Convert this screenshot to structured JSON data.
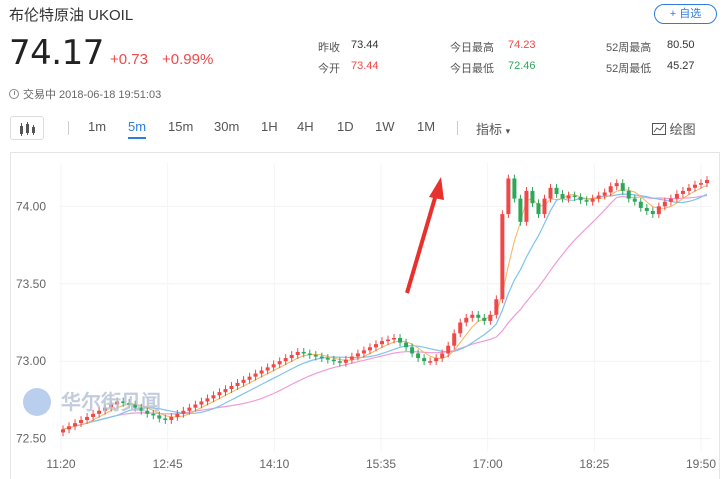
{
  "header": {
    "title": "布伦特原油 UKOIL",
    "add_button": "+ 自选"
  },
  "quote": {
    "price": "74.17",
    "change": "+0.73",
    "change_pct": "+0.99%"
  },
  "stats": {
    "prev_close_label": "昨收",
    "prev_close": "73.44",
    "open_label": "今开",
    "open": "73.44",
    "high_label": "今日最高",
    "high": "74.23",
    "low_label": "今日最低",
    "low": "72.46",
    "w52_high_label": "52周最高",
    "w52_high": "80.50",
    "w52_low_label": "52周最低",
    "w52_low": "45.27"
  },
  "status": {
    "text": "交易中 2018-06-18 19:51:03"
  },
  "toolbar": {
    "intervals": [
      "1m",
      "5m",
      "15m",
      "30m",
      "1H",
      "4H",
      "1D",
      "1W",
      "1M"
    ],
    "active_interval": "5m",
    "indicator_label": "指标",
    "draw_label": "绘图"
  },
  "colors": {
    "up": "#f04848",
    "down": "#2ca85a",
    "accent": "#2d7de0",
    "ma_fast": "#f5b25e",
    "ma_mid": "#7dc3ef",
    "ma_slow": "#f29ad8",
    "annotation_arrow": "#e8302c"
  },
  "watermark": "华尔街见闻",
  "chart_data": {
    "type": "candlestick",
    "y_ticks": [
      "74.00",
      "73.50",
      "73.00",
      "72.50"
    ],
    "x_ticks": [
      "11:20",
      "12:45",
      "14:10",
      "15:35",
      "17:00",
      "18:25",
      "19:50"
    ],
    "ylim": [
      72.42,
      74.28
    ],
    "close_series": [
      72.56,
      72.58,
      72.6,
      72.62,
      72.64,
      72.66,
      72.68,
      72.7,
      72.72,
      72.74,
      72.73,
      72.72,
      72.7,
      72.68,
      72.66,
      72.65,
      72.63,
      72.62,
      72.64,
      72.66,
      72.68,
      72.7,
      72.72,
      72.74,
      72.76,
      72.78,
      72.8,
      72.82,
      72.84,
      72.86,
      72.88,
      72.9,
      72.92,
      72.94,
      72.96,
      72.98,
      73.0,
      73.02,
      73.04,
      73.06,
      73.05,
      73.04,
      73.03,
      73.02,
      73.01,
      73.0,
      72.99,
      73.01,
      73.03,
      73.05,
      73.07,
      73.09,
      73.11,
      73.13,
      73.14,
      73.15,
      73.12,
      73.09,
      73.05,
      73.02,
      73.0,
      73.0,
      73.02,
      73.05,
      73.1,
      73.18,
      73.25,
      73.28,
      73.3,
      73.28,
      73.26,
      73.3,
      73.4,
      73.95,
      74.18,
      74.05,
      73.9,
      74.1,
      74.02,
      73.95,
      74.05,
      74.12,
      74.08,
      74.05,
      74.07,
      74.06,
      74.04,
      74.03,
      74.05,
      74.07,
      74.09,
      74.13,
      74.15,
      74.1,
      74.05,
      74.03,
      73.99,
      73.97,
      73.95,
      74.0,
      74.03,
      74.05,
      74.08,
      74.1,
      74.12,
      74.14,
      74.15,
      74.17
    ]
  }
}
